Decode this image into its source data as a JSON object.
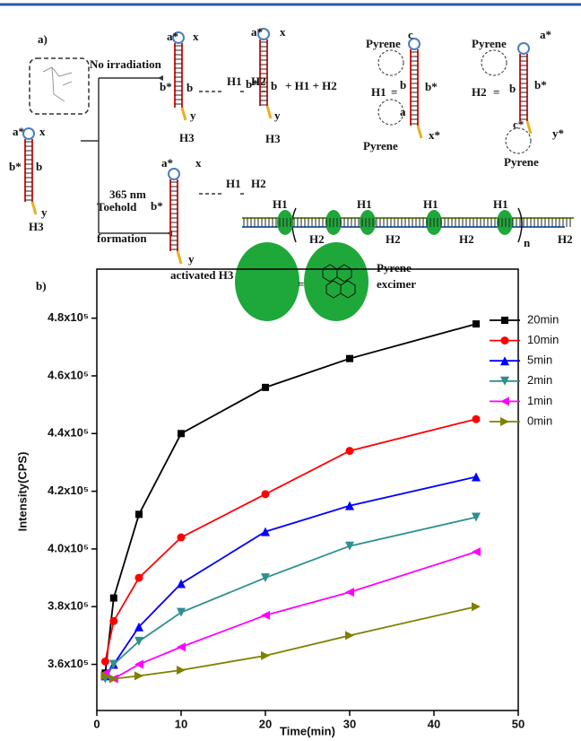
{
  "diagram": {
    "labels": [
      "a)",
      "No irradiation",
      "a*",
      "x",
      "b*",
      "b",
      "H1",
      "H2",
      "a*",
      "x",
      "b*",
      "b",
      "+ H1 + H2",
      "y",
      "H3",
      "y",
      "H3",
      "a*",
      "x",
      "b*",
      "b",
      "y",
      "H3",
      "365 nm",
      "Toehold",
      "formation",
      "b*",
      "a*",
      "x",
      "H1",
      "H2",
      "y",
      "activated H3",
      "Pyrene",
      "c",
      "H1",
      "=",
      "b",
      "b*",
      "a",
      "x*",
      "Pyrene",
      "Pyrene",
      "a*",
      "H2",
      "=",
      "b",
      "b*",
      "c*",
      "y*",
      "Pyrene",
      "H1",
      "H1",
      "H1",
      "H1",
      "H2",
      "H2",
      "H2",
      "H2",
      "n",
      "b)",
      "=",
      "Pyrene",
      "excimer"
    ]
  },
  "chart_data": {
    "type": "line",
    "xlabel": "Time(min)",
    "ylabel": "Intensity(CPS)",
    "xlim": [
      0,
      50
    ],
    "xticks": [
      0,
      10,
      20,
      30,
      40,
      50
    ],
    "ylim": [
      344000,
      497000
    ],
    "yticks": [
      {
        "value": 360000,
        "label": "3.6x10⁵"
      },
      {
        "value": 380000,
        "label": "3.8x10⁵"
      },
      {
        "value": 400000,
        "label": "4.0x10⁵"
      },
      {
        "value": 420000,
        "label": "4.2x10⁵"
      },
      {
        "value": 440000,
        "label": "4.4x10⁵"
      },
      {
        "value": 460000,
        "label": "4.6x10⁵"
      },
      {
        "value": 480000,
        "label": "4.8x10⁵"
      }
    ],
    "x": [
      1,
      2,
      5,
      10,
      20,
      30,
      45
    ],
    "series": [
      {
        "name": "20min",
        "color": "#000000",
        "marker": "square",
        "values": [
          357000,
          383000,
          412000,
          440000,
          456000,
          466000,
          478000
        ]
      },
      {
        "name": "10min",
        "color": "#ff0000",
        "marker": "circle",
        "values": [
          361000,
          375000,
          390000,
          404000,
          419000,
          434000,
          445000
        ]
      },
      {
        "name": "5min",
        "color": "#0000ff",
        "marker": "triangle-up",
        "values": [
          356000,
          360000,
          373000,
          388000,
          406000,
          415000,
          425000
        ]
      },
      {
        "name": "2min",
        "color": "#2f8f8f",
        "marker": "triangle-down",
        "values": [
          355000,
          360000,
          368000,
          378000,
          390000,
          401000,
          411000
        ]
      },
      {
        "name": "1min",
        "color": "#ff00ff",
        "marker": "triangle-left",
        "values": [
          357000,
          355000,
          360000,
          366000,
          377000,
          385000,
          399000
        ]
      },
      {
        "name": "0min",
        "color": "#808000",
        "marker": "triangle-right",
        "values": [
          356000,
          355000,
          356000,
          358000,
          363000,
          370000,
          380000
        ]
      }
    ]
  }
}
